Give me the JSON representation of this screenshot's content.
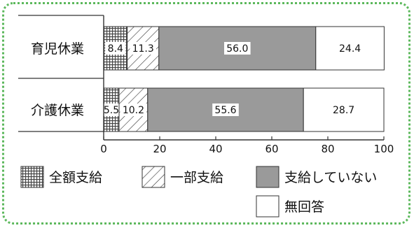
{
  "chart_data": {
    "type": "bar",
    "orientation": "horizontal",
    "stacked": true,
    "title": "",
    "xlabel": "",
    "ylabel": "",
    "xlim": [
      0,
      100
    ],
    "x_ticks": [
      "0",
      "20",
      "40",
      "60",
      "80",
      "100"
    ],
    "categories": [
      "育児休業",
      "介護休業"
    ],
    "series": [
      {
        "name": "全額支給",
        "values": [
          8.4,
          5.5
        ],
        "fill": "grid",
        "color": "#777777"
      },
      {
        "name": "一部支給",
        "values": [
          11.3,
          10.2
        ],
        "fill": "hatch",
        "color": "#ffffff"
      },
      {
        "name": "支給していない",
        "values": [
          56.0,
          55.6
        ],
        "fill": "solid",
        "color": "#9a9a9a"
      },
      {
        "name": "無回答",
        "values": [
          24.4,
          28.7
        ],
        "fill": "solid",
        "color": "#ffffff"
      }
    ],
    "data_labels": [
      [
        "8.4",
        "11.3",
        "56.0",
        "24.4"
      ],
      [
        "5.5",
        "10.2",
        "55.6",
        "28.7"
      ]
    ],
    "legend_position": "bottom",
    "grid": false
  },
  "colors": {
    "frame": "#5cb85c",
    "bar_stroke": "#333333"
  }
}
